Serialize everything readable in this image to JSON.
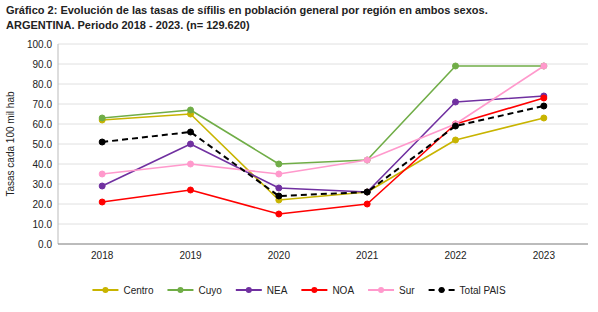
{
  "chart_data": {
    "type": "line",
    "title": "Gráfico 2: Evolución de las tasas de sífilis en población general por región en ambos sexos.",
    "subtitle": "ARGENTINA. Periodo 2018 - 2023. (n= 129.620)",
    "y_label": "Tasas cada 100 mil hab",
    "categories": [
      "2018",
      "2019",
      "2020",
      "2021",
      "2022",
      "2023"
    ],
    "series": [
      {
        "name": "Centro",
        "color": "#c8b400",
        "marker": "circle",
        "line_style": "solid",
        "values": [
          62.0,
          65.0,
          22.0,
          26.0,
          52.0,
          63.0
        ]
      },
      {
        "name": "Cuyo",
        "color": "#70ad47",
        "marker": "circle",
        "line_style": "solid",
        "values": [
          63.0,
          67.0,
          40.0,
          42.0,
          89.0,
          89.0
        ]
      },
      {
        "name": "NEA",
        "color": "#7030a0",
        "marker": "circle",
        "line_style": "solid",
        "values": [
          29.0,
          50.0,
          28.0,
          26.0,
          71.0,
          74.0
        ]
      },
      {
        "name": "NOA",
        "color": "#ff0000",
        "marker": "circle",
        "line_style": "solid",
        "values": [
          21.0,
          27.0,
          15.0,
          20.0,
          60.0,
          73.0
        ]
      },
      {
        "name": "Sur",
        "color": "#ff99cc",
        "marker": "circle",
        "line_style": "solid",
        "values": [
          35.0,
          40.0,
          35.0,
          42.0,
          60.0,
          89.0
        ]
      },
      {
        "name": "Total PAIS",
        "color": "#000000",
        "marker": "circle",
        "line_style": "dashed",
        "values": [
          51.0,
          56.0,
          24.0,
          26.0,
          59.0,
          69.0
        ]
      }
    ],
    "ylim": [
      0,
      100
    ],
    "yticks": [
      {
        "value": 0,
        "label": "0.0"
      },
      {
        "value": 10,
        "label": "10.0"
      },
      {
        "value": 20,
        "label": "20.0"
      },
      {
        "value": 30,
        "label": "30.0"
      },
      {
        "value": 40,
        "label": "40.0"
      },
      {
        "value": 50,
        "label": "50.0"
      },
      {
        "value": 60,
        "label": "60.0"
      },
      {
        "value": 70,
        "label": "70.0"
      },
      {
        "value": 80,
        "label": "80.0"
      },
      {
        "value": 90,
        "label": "90.0"
      },
      {
        "value": 100,
        "label": "100.0"
      }
    ],
    "grid": true,
    "legend": "bottom"
  }
}
